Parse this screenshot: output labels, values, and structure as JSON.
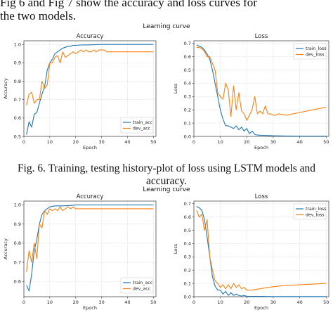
{
  "text": {
    "intro_line1": "Fig 6  and  Fig 7  show the accuracy and loss curves for",
    "intro_line2": "the two models.",
    "caption_fig6_line1": "Fig. 6.   Training, testing history-plot of loss using LSTM models and",
    "caption_fig6_line2": "accuracy."
  },
  "figures": [
    {
      "suptitle": "Learning curve",
      "panels": [
        {
          "chart_data": {
            "type": "line",
            "title": "Accuracy",
            "xlabel": "Epoch",
            "ylabel": "Accuracy",
            "xlim": [
              0,
              51
            ],
            "ylim": [
              0.5,
              1.02
            ],
            "xticks": [
              "0",
              "10",
              "20",
              "30",
              "40",
              "50"
            ],
            "yticks": [
              "0.5",
              "0.6",
              "0.7",
              "0.8",
              "0.9",
              "1.0"
            ],
            "grid": true,
            "legend_position": "lower-right",
            "series": [
              {
                "name": "train_acc",
                "color": "#1f77b4",
                "x": [
                  1,
                  2,
                  3,
                  4,
                  5,
                  6,
                  7,
                  8,
                  9,
                  10,
                  11,
                  12,
                  13,
                  14,
                  15,
                  16,
                  17,
                  18,
                  19,
                  20,
                  22,
                  25,
                  30,
                  35,
                  40,
                  45,
                  50
                ],
                "y": [
                  0.51,
                  0.58,
                  0.55,
                  0.62,
                  0.63,
                  0.68,
                  0.73,
                  0.77,
                  0.86,
                  0.9,
                  0.92,
                  0.95,
                  0.96,
                  0.97,
                  0.98,
                  0.985,
                  0.99,
                  0.99,
                  0.995,
                  0.995,
                  0.997,
                  0.998,
                  1.0,
                  1.0,
                  1.0,
                  1.0,
                  1.0
                ]
              },
              {
                "name": "dev_acc",
                "color": "#ff7f0e",
                "x": [
                  1,
                  2,
                  3,
                  4,
                  5,
                  6,
                  7,
                  8,
                  9,
                  10,
                  11,
                  12,
                  13,
                  14,
                  15,
                  16,
                  17,
                  18,
                  19,
                  20,
                  21,
                  22,
                  23,
                  24,
                  25,
                  26,
                  27,
                  28,
                  29,
                  30,
                  31,
                  32,
                  35,
                  40,
                  45,
                  50
                ],
                "y": [
                  0.67,
                  0.73,
                  0.74,
                  0.68,
                  0.7,
                  0.7,
                  0.8,
                  0.76,
                  0.78,
                  0.9,
                  0.9,
                  0.93,
                  0.94,
                  0.9,
                  0.96,
                  0.93,
                  0.94,
                  0.95,
                  0.96,
                  0.95,
                  0.96,
                  0.97,
                  0.96,
                  0.97,
                  0.96,
                  0.96,
                  0.97,
                  0.96,
                  0.97,
                  0.97,
                  0.97,
                  0.96,
                  0.96,
                  0.96,
                  0.96,
                  0.96
                ]
              }
            ]
          }
        },
        {
          "chart_data": {
            "type": "line",
            "title": "Loss",
            "xlabel": "Epoch",
            "ylabel": "Loss",
            "xlim": [
              0,
              51
            ],
            "ylim": [
              0,
              0.72
            ],
            "xticks": [
              "0",
              "10",
              "20",
              "30",
              "40",
              "50"
            ],
            "yticks": [
              "0.0",
              "0.1",
              "0.2",
              "0.3",
              "0.4",
              "0.5",
              "0.6",
              "0.7"
            ],
            "grid": true,
            "legend_position": "upper-right",
            "series": [
              {
                "name": "train_loss",
                "color": "#1f77b4",
                "x": [
                  1,
                  2,
                  3,
                  4,
                  5,
                  6,
                  7,
                  8,
                  9,
                  10,
                  11,
                  12,
                  13,
                  14,
                  15,
                  16,
                  17,
                  18,
                  19,
                  20,
                  21,
                  22,
                  23,
                  24,
                  26,
                  30,
                  35,
                  40,
                  45,
                  50
                ],
                "y": [
                  0.69,
                  0.68,
                  0.67,
                  0.65,
                  0.62,
                  0.58,
                  0.5,
                  0.4,
                  0.3,
                  0.2,
                  0.13,
                  0.08,
                  0.08,
                  0.07,
                  0.06,
                  0.08,
                  0.05,
                  0.07,
                  0.04,
                  0.06,
                  0.02,
                  0.04,
                  0.015,
                  0.01,
                  0.008,
                  0.005,
                  0.003,
                  0.002,
                  0.002,
                  0.002
                ]
              },
              {
                "name": "dev_loss",
                "color": "#ff7f0e",
                "x": [
                  1,
                  2,
                  3,
                  4,
                  5,
                  6,
                  7,
                  8,
                  9,
                  10,
                  11,
                  12,
                  13,
                  14,
                  15,
                  16,
                  17,
                  18,
                  19,
                  20,
                  21,
                  22,
                  23,
                  24,
                  25,
                  26,
                  27,
                  28,
                  29,
                  30,
                  31,
                  32,
                  35,
                  40,
                  45,
                  50
                ],
                "y": [
                  0.67,
                  0.67,
                  0.66,
                  0.64,
                  0.6,
                  0.6,
                  0.55,
                  0.5,
                  0.33,
                  0.3,
                  0.28,
                  0.4,
                  0.35,
                  0.15,
                  0.38,
                  0.2,
                  0.33,
                  0.19,
                  0.17,
                  0.12,
                  0.16,
                  0.2,
                  0.3,
                  0.17,
                  0.19,
                  0.17,
                  0.23,
                  0.17,
                  0.17,
                  0.16,
                  0.16,
                  0.17,
                  0.16,
                  0.18,
                  0.2,
                  0.22
                ]
              }
            ]
          }
        }
      ]
    },
    {
      "suptitle": "Learning curve",
      "panels": [
        {
          "chart_data": {
            "type": "line",
            "title": "Accuracy",
            "xlabel": "Epoch",
            "ylabel": "Accuracy",
            "xlim": [
              0,
              51
            ],
            "ylim": [
              0.52,
              1.02
            ],
            "xticks": [
              "0",
              "10",
              "20",
              "30",
              "40",
              "50"
            ],
            "yticks": [
              "0.6",
              "0.7",
              "0.8",
              "0.9",
              "1.0"
            ],
            "grid": true,
            "legend_position": "lower-right",
            "series": [
              {
                "name": "train_acc",
                "color": "#1f77b4",
                "x": [
                  1,
                  2,
                  3,
                  4,
                  5,
                  6,
                  7,
                  8,
                  9,
                  10,
                  12,
                  15,
                  18,
                  20,
                  25,
                  30,
                  35,
                  40,
                  45,
                  50
                ],
                "y": [
                  0.58,
                  0.55,
                  0.64,
                  0.76,
                  0.82,
                  0.9,
                  0.95,
                  0.97,
                  0.98,
                  0.99,
                  0.995,
                  0.995,
                  0.997,
                  1.0,
                  1.0,
                  1.0,
                  1.0,
                  1.0,
                  1.0,
                  1.0
                ]
              },
              {
                "name": "dev_acc",
                "color": "#ff7f0e",
                "x": [
                  1,
                  2,
                  3,
                  4,
                  5,
                  6,
                  7,
                  8,
                  9,
                  10,
                  11,
                  12,
                  13,
                  14,
                  15,
                  16,
                  17,
                  18,
                  19,
                  20,
                  22,
                  25,
                  30,
                  35,
                  40,
                  45,
                  50
                ],
                "y": [
                  0.65,
                  0.76,
                  0.7,
                  0.8,
                  0.72,
                  0.9,
                  0.88,
                  0.97,
                  0.95,
                  0.98,
                  0.97,
                  0.98,
                  0.97,
                  0.99,
                  0.97,
                  0.98,
                  0.99,
                  0.98,
                  0.99,
                  0.98,
                  0.98,
                  0.98,
                  0.98,
                  0.98,
                  0.98,
                  0.98,
                  0.98
                ]
              }
            ]
          }
        },
        {
          "chart_data": {
            "type": "line",
            "title": "Loss",
            "xlabel": "Epoch",
            "ylabel": "Loss",
            "xlim": [
              0,
              51
            ],
            "ylim": [
              0,
              0.72
            ],
            "xticks": [
              "0",
              "10",
              "20",
              "30",
              "40",
              "50"
            ],
            "yticks": [
              "0.0",
              "0.1",
              "0.2",
              "0.3",
              "0.4",
              "0.5",
              "0.6",
              "0.7"
            ],
            "grid": true,
            "legend_position": "upper-right",
            "series": [
              {
                "name": "train_loss",
                "color": "#1f77b4",
                "x": [
                  1,
                  2,
                  3,
                  4,
                  5,
                  6,
                  7,
                  8,
                  9,
                  10,
                  11,
                  12,
                  13,
                  14,
                  15,
                  16,
                  17,
                  18,
                  19,
                  20,
                  22,
                  25,
                  30,
                  35,
                  40,
                  45,
                  50
                ],
                "y": [
                  0.68,
                  0.67,
                  0.65,
                  0.58,
                  0.45,
                  0.3,
                  0.15,
                  0.08,
                  0.05,
                  0.05,
                  0.02,
                  0.04,
                  0.01,
                  0.03,
                  0.01,
                  0.02,
                  0.01,
                  0.005,
                  0.01,
                  0.003,
                  0.002,
                  0.002,
                  0.001,
                  0.001,
                  0.001,
                  0.001,
                  0.001
                ]
              },
              {
                "name": "dev_loss",
                "color": "#ff7f0e",
                "x": [
                  1,
                  2,
                  3,
                  4,
                  5,
                  6,
                  7,
                  8,
                  9,
                  10,
                  11,
                  12,
                  13,
                  14,
                  15,
                  16,
                  17,
                  18,
                  19,
                  20,
                  22,
                  25,
                  28,
                  30,
                  32,
                  35,
                  40,
                  45,
                  50
                ],
                "y": [
                  0.65,
                  0.6,
                  0.62,
                  0.5,
                  0.58,
                  0.3,
                  0.2,
                  0.12,
                  0.1,
                  0.07,
                  0.09,
                  0.06,
                  0.09,
                  0.06,
                  0.1,
                  0.07,
                  0.09,
                  0.06,
                  0.07,
                  0.05,
                  0.05,
                  0.06,
                  0.07,
                  0.075,
                  0.08,
                  0.085,
                  0.09,
                  0.095,
                  0.1
                ]
              }
            ]
          }
        }
      ]
    }
  ]
}
